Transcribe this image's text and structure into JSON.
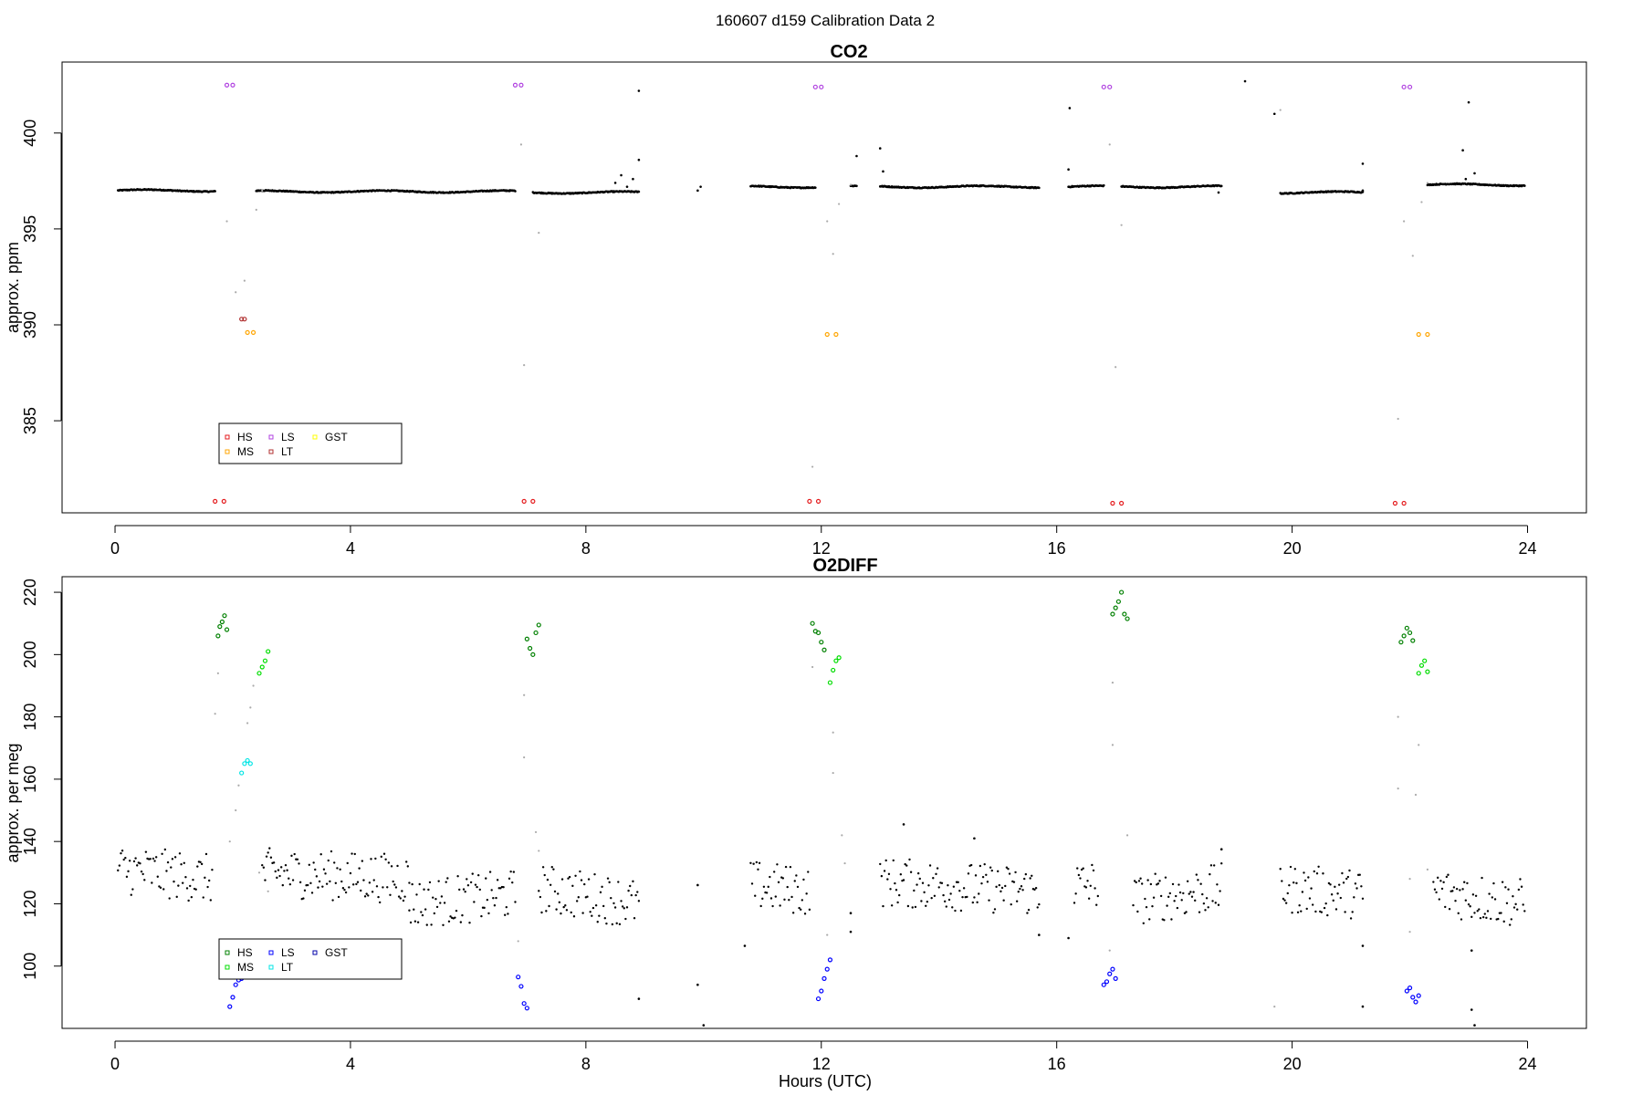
{
  "figure": {
    "title": "160607   d159   Calibration Data 2"
  },
  "chart_data": [
    {
      "id": "co2",
      "type": "scatter",
      "title": "CO2",
      "xlabel": "",
      "ylabel": "approx. ppm",
      "xlim": [
        -0.9,
        25.0
      ],
      "ylim": [
        380.2,
        403.7
      ],
      "xticks": [
        0,
        4,
        8,
        12,
        16,
        20,
        24
      ],
      "yticks": [
        385,
        390,
        395,
        400
      ],
      "legend": {
        "position": "bottom-left",
        "entries": [
          {
            "label": "HS",
            "color": "#e41a1c"
          },
          {
            "label": "MS",
            "color": "#ffa500"
          },
          {
            "label": "LS",
            "color": "#b041e0"
          },
          {
            "label": "LT",
            "color": "#b03030"
          },
          {
            "label": "GST",
            "color": "#ffff00"
          }
        ]
      },
      "background": {
        "color": "#000000",
        "segments": [
          [
            0.05,
            1.7,
            397.0
          ],
          [
            2.4,
            6.8,
            396.95
          ],
          [
            7.1,
            8.9,
            396.9
          ],
          [
            10.8,
            11.9,
            397.2
          ],
          [
            12.5,
            12.6,
            397.2
          ],
          [
            13.0,
            15.7,
            397.2
          ],
          [
            16.2,
            16.8,
            397.2
          ],
          [
            17.1,
            18.8,
            397.2
          ],
          [
            19.8,
            21.2,
            396.9
          ],
          [
            22.3,
            23.95,
            397.3
          ]
        ],
        "extras": [
          [
            8.5,
            397.4
          ],
          [
            8.6,
            397.8
          ],
          [
            8.7,
            397.2
          ],
          [
            8.8,
            397.6
          ],
          [
            8.9,
            398.6
          ],
          [
            8.9,
            402.2
          ],
          [
            9.9,
            397.0
          ],
          [
            9.95,
            397.2
          ],
          [
            12.6,
            398.8
          ],
          [
            13.0,
            399.2
          ],
          [
            13.05,
            398.0
          ],
          [
            16.2,
            398.1
          ],
          [
            16.22,
            401.3
          ],
          [
            19.2,
            402.7
          ],
          [
            19.7,
            401.0
          ],
          [
            21.2,
            398.4
          ],
          [
            21.2,
            397.0
          ],
          [
            22.9,
            399.1
          ],
          [
            23.0,
            401.6
          ],
          [
            22.95,
            397.6
          ],
          [
            23.1,
            397.9
          ],
          [
            18.75,
            396.9
          ]
        ]
      },
      "transitions": {
        "color": "#aaaaaa",
        "points": [
          [
            1.9,
            395.4
          ],
          [
            2.05,
            391.7
          ],
          [
            2.2,
            392.3
          ],
          [
            2.4,
            396.0
          ],
          [
            2.5,
            397.0
          ],
          [
            6.9,
            399.4
          ],
          [
            6.95,
            387.9
          ],
          [
            7.2,
            394.8
          ],
          [
            12.1,
            395.4
          ],
          [
            12.2,
            393.7
          ],
          [
            12.3,
            396.3
          ],
          [
            12.5,
            397.3
          ],
          [
            16.9,
            399.4
          ],
          [
            17.0,
            387.8
          ],
          [
            17.1,
            395.2
          ],
          [
            21.8,
            385.1
          ],
          [
            21.9,
            395.4
          ],
          [
            22.05,
            393.6
          ],
          [
            22.2,
            396.4
          ],
          [
            22.3,
            397.4
          ],
          [
            11.85,
            382.6
          ],
          [
            19.8,
            401.2
          ]
        ]
      },
      "calibration": [
        {
          "name": "LS",
          "color": "#b041e0",
          "points": [
            [
              1.9,
              402.5
            ],
            [
              2.0,
              402.5
            ],
            [
              6.8,
              402.5
            ],
            [
              6.9,
              402.5
            ],
            [
              11.9,
              402.4
            ],
            [
              12.0,
              402.4
            ],
            [
              16.8,
              402.4
            ],
            [
              16.9,
              402.4
            ],
            [
              21.9,
              402.4
            ],
            [
              22.0,
              402.4
            ]
          ]
        },
        {
          "name": "HS",
          "color": "#e41a1c",
          "points": [
            [
              1.7,
              380.8
            ],
            [
              1.85,
              380.8
            ],
            [
              6.95,
              380.8
            ],
            [
              7.1,
              380.8
            ],
            [
              11.8,
              380.8
            ],
            [
              11.95,
              380.8
            ],
            [
              16.95,
              380.7
            ],
            [
              17.1,
              380.7
            ],
            [
              21.75,
              380.7
            ],
            [
              21.9,
              380.7
            ]
          ]
        },
        {
          "name": "LT",
          "color": "#b03030",
          "points": [
            [
              2.15,
              390.3
            ],
            [
              2.2,
              390.3
            ]
          ]
        },
        {
          "name": "MS",
          "color": "#ffa500",
          "points": [
            [
              2.25,
              389.6
            ],
            [
              2.35,
              389.6
            ],
            [
              12.1,
              389.5
            ],
            [
              12.25,
              389.5
            ],
            [
              22.15,
              389.5
            ],
            [
              22.3,
              389.5
            ]
          ]
        }
      ]
    },
    {
      "id": "o2diff",
      "type": "scatter",
      "title": "O2DIFF",
      "xlabel": "Hours (UTC)",
      "ylabel": "approx. per meg",
      "xlim": [
        -0.9,
        25.0
      ],
      "ylim": [
        80.0,
        225.0
      ],
      "xticks": [
        0,
        4,
        8,
        12,
        16,
        20,
        24
      ],
      "yticks": [
        100,
        120,
        140,
        160,
        180,
        200,
        220
      ],
      "legend": {
        "position": "bottom-left",
        "entries": [
          {
            "label": "HS",
            "color": "#008000"
          },
          {
            "label": "MS",
            "color": "#00dd00"
          },
          {
            "label": "LS",
            "color": "#0000ff"
          },
          {
            "label": "LT",
            "color": "#00e5e5"
          },
          {
            "label": "GST",
            "color": "#0000aa"
          }
        ]
      },
      "background": {
        "color": "#000000",
        "segments": [
          [
            0.05,
            1.65,
            131,
            128
          ],
          [
            2.5,
            5.0,
            130,
            128
          ],
          [
            5.0,
            6.8,
            120,
            123
          ],
          [
            7.2,
            8.9,
            125,
            120
          ],
          [
            10.8,
            11.8,
            126,
            124
          ],
          [
            13.0,
            15.7,
            127,
            124
          ],
          [
            16.3,
            16.7,
            126,
            126
          ],
          [
            17.3,
            18.8,
            121,
            125
          ],
          [
            19.8,
            21.2,
            125,
            123
          ],
          [
            22.4,
            23.95,
            124,
            120
          ]
        ],
        "noise": 10,
        "extras": [
          [
            8.9,
            89.5
          ],
          [
            9.9,
            94.0
          ],
          [
            9.9,
            126.0
          ],
          [
            10.0,
            81.0
          ],
          [
            10.7,
            106.5
          ],
          [
            13.4,
            145.5
          ],
          [
            14.6,
            141.0
          ],
          [
            15.7,
            110.0
          ],
          [
            16.2,
            109.0
          ],
          [
            18.8,
            137.5
          ],
          [
            21.2,
            106.5
          ],
          [
            21.2,
            87.0
          ],
          [
            23.05,
            86.0
          ],
          [
            23.05,
            105.0
          ],
          [
            23.1,
            81.0
          ],
          [
            12.5,
            111.0
          ],
          [
            12.5,
            117.0
          ]
        ]
      },
      "transitions": {
        "color": "#aaaaaa",
        "points": [
          [
            1.7,
            181.0
          ],
          [
            1.75,
            194.0
          ],
          [
            1.95,
            140.0
          ],
          [
            2.05,
            150.0
          ],
          [
            2.1,
            158.0
          ],
          [
            2.25,
            178.0
          ],
          [
            2.3,
            183.0
          ],
          [
            2.35,
            190.0
          ],
          [
            2.45,
            130.0
          ],
          [
            2.6,
            124.0
          ],
          [
            6.85,
            108.0
          ],
          [
            6.95,
            167.0
          ],
          [
            6.95,
            187.0
          ],
          [
            7.2,
            137.0
          ],
          [
            7.15,
            143.0
          ],
          [
            11.85,
            196.0
          ],
          [
            12.1,
            110.0
          ],
          [
            12.2,
            175.0
          ],
          [
            12.2,
            162.0
          ],
          [
            12.35,
            142.0
          ],
          [
            12.4,
            133.0
          ],
          [
            16.9,
            105.0
          ],
          [
            16.95,
            171.0
          ],
          [
            16.95,
            191.0
          ],
          [
            17.2,
            142.0
          ],
          [
            21.8,
            157.0
          ],
          [
            21.8,
            180.0
          ],
          [
            22.0,
            128.0
          ],
          [
            22.0,
            111.0
          ],
          [
            22.1,
            155.0
          ],
          [
            22.15,
            171.0
          ],
          [
            22.3,
            131.0
          ],
          [
            19.7,
            87.0
          ]
        ]
      },
      "calibration": [
        {
          "name": "HS",
          "color": "#008000",
          "points": [
            [
              1.75,
              206.0
            ],
            [
              1.78,
              209.0
            ],
            [
              1.82,
              210.5
            ],
            [
              1.86,
              212.5
            ],
            [
              1.9,
              208.0
            ],
            [
              7.0,
              205.0
            ],
            [
              7.05,
              202.0
            ],
            [
              7.1,
              200.0
            ],
            [
              7.15,
              207.0
            ],
            [
              7.2,
              209.5
            ],
            [
              11.85,
              210.0
            ],
            [
              11.9,
              207.5
            ],
            [
              11.95,
              207.0
            ],
            [
              12.0,
              204.0
            ],
            [
              12.05,
              201.5
            ],
            [
              16.95,
              213.0
            ],
            [
              17.0,
              215.0
            ],
            [
              17.05,
              217.0
            ],
            [
              17.1,
              220.0
            ],
            [
              17.15,
              213.0
            ],
            [
              17.2,
              211.5
            ],
            [
              21.85,
              204.0
            ],
            [
              21.9,
              206.0
            ],
            [
              21.95,
              208.5
            ],
            [
              22.0,
              207.0
            ],
            [
              22.05,
              204.5
            ]
          ]
        },
        {
          "name": "MS",
          "color": "#00dd00",
          "points": [
            [
              2.45,
              194.0
            ],
            [
              2.5,
              196.0
            ],
            [
              2.55,
              198.0
            ],
            [
              2.6,
              201.0
            ],
            [
              12.15,
              191.0
            ],
            [
              12.2,
              195.0
            ],
            [
              12.25,
              198.0
            ],
            [
              12.3,
              199.0
            ],
            [
              22.15,
              194.0
            ],
            [
              22.2,
              196.5
            ],
            [
              22.25,
              198.0
            ],
            [
              22.3,
              194.5
            ]
          ]
        },
        {
          "name": "LT",
          "color": "#00e5e5",
          "points": [
            [
              2.15,
              162.0
            ],
            [
              2.2,
              165.0
            ],
            [
              2.25,
              166.0
            ],
            [
              2.3,
              165.0
            ]
          ]
        },
        {
          "name": "LS",
          "color": "#0000ff",
          "points": [
            [
              1.95,
              87.0
            ],
            [
              2.0,
              90.0
            ],
            [
              2.05,
              94.0
            ],
            [
              2.1,
              95.5
            ],
            [
              2.15,
              96.0
            ],
            [
              6.85,
              96.5
            ],
            [
              6.9,
              93.5
            ],
            [
              6.95,
              88.0
            ],
            [
              7.0,
              86.5
            ],
            [
              11.95,
              89.5
            ],
            [
              12.0,
              92.0
            ],
            [
              12.05,
              96.0
            ],
            [
              12.1,
              99.0
            ],
            [
              12.15,
              102.0
            ],
            [
              16.8,
              94.0
            ],
            [
              16.85,
              95.0
            ],
            [
              16.9,
              97.5
            ],
            [
              16.95,
              99.0
            ],
            [
              17.0,
              96.0
            ],
            [
              21.95,
              92.0
            ],
            [
              22.0,
              93.0
            ],
            [
              22.05,
              90.0
            ],
            [
              22.1,
              88.5
            ],
            [
              22.15,
              90.5
            ]
          ]
        }
      ]
    }
  ]
}
